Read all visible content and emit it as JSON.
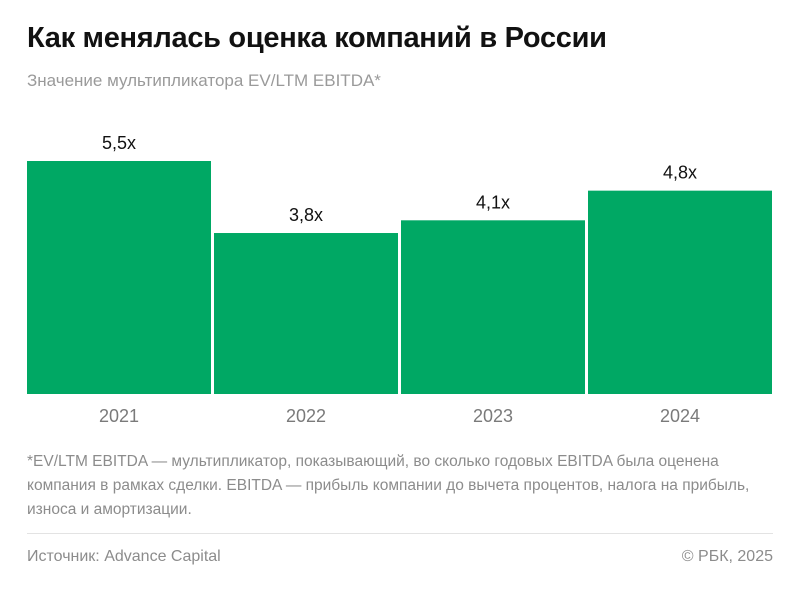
{
  "title": "Как менялась оценка компаний в России",
  "subtitle": "Значение мультипликатора EV/LTM EBITDA*",
  "chart_data": {
    "type": "bar",
    "categories": [
      "2021",
      "2022",
      "2023",
      "2024"
    ],
    "values": [
      5.5,
      3.8,
      4.1,
      4.8
    ],
    "data_labels": [
      "5,5x",
      "3,8x",
      "4,1x",
      "4,8x"
    ],
    "ylim": [
      0,
      5.5
    ],
    "grid": false,
    "bar_color": "#00a864"
  },
  "footnote": "*EV/LTM EBITDA — мультипликатор, показывающий, во сколько годовых EBITDA была оценена компания в рамках сделки. EBITDA — прибыль компании до вычета процентов, налога на прибыль, износа и амортизации.",
  "source": "Источник: Advance Capital",
  "copyright": "© РБК, 2025"
}
